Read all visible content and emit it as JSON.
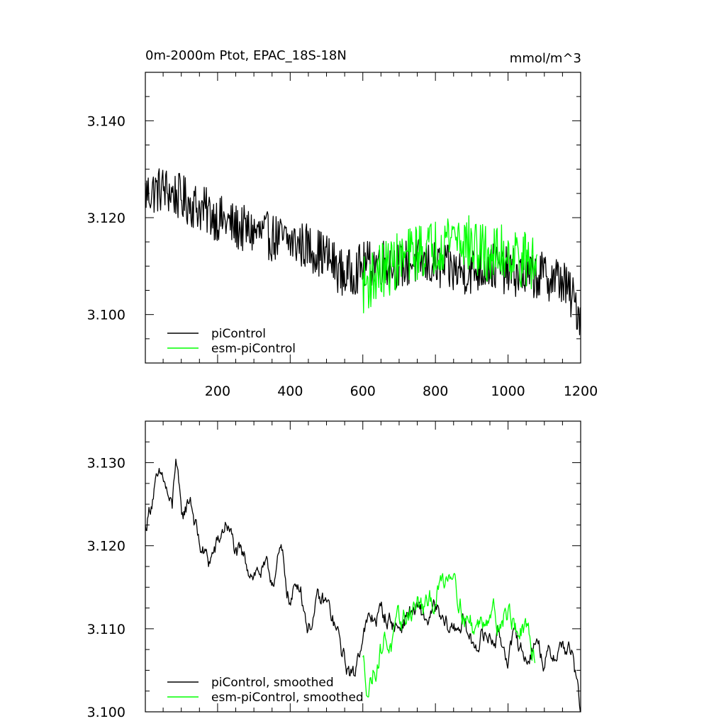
{
  "chart_data": [
    {
      "type": "line",
      "title": "0m-2000m Ptot, EPAC_18S-18N",
      "units": "mmol/m^3",
      "xlim": [
        1,
        1200
      ],
      "ylim": [
        3.09,
        3.15
      ],
      "xticks": [
        200,
        400,
        600,
        800,
        1000,
        1200
      ],
      "xtick_labels": [
        "200",
        "400",
        "600",
        "800",
        "1000",
        "1200"
      ],
      "yticks": [
        3.1,
        3.12,
        3.14
      ],
      "ytick_labels": [
        "3.100",
        "3.120",
        "3.140"
      ],
      "legend_position": "bottom-left",
      "series": [
        {
          "name": "piControl",
          "color": "#000000",
          "x": [
            1,
            50,
            100,
            150,
            200,
            250,
            300,
            350,
            400,
            450,
            500,
            550,
            600,
            650,
            700,
            750,
            800,
            850,
            900,
            950,
            1000,
            1050,
            1100,
            1150,
            1200
          ],
          "values": [
            3.125,
            3.126,
            3.124,
            3.122,
            3.12,
            3.118,
            3.117,
            3.116,
            3.115,
            3.114,
            3.112,
            3.108,
            3.11,
            3.111,
            3.11,
            3.111,
            3.11,
            3.109,
            3.109,
            3.11,
            3.109,
            3.108,
            3.108,
            3.107,
            3.1
          ],
          "noise": 0.005
        },
        {
          "name": "esm-piControl",
          "color": "#00ff00",
          "x": [
            600,
            650,
            700,
            750,
            800,
            850,
            900,
            950,
            1000,
            1050,
            1080
          ],
          "values": [
            3.106,
            3.109,
            3.111,
            3.113,
            3.114,
            3.117,
            3.114,
            3.112,
            3.113,
            3.111,
            3.11
          ],
          "noise": 0.006
        }
      ]
    },
    {
      "type": "line",
      "title": "",
      "units": "",
      "xlim": [
        1,
        1200
      ],
      "ylim": [
        3.1,
        3.135
      ],
      "xticks": [
        200,
        400,
        600,
        800,
        1000,
        1200
      ],
      "xtick_labels": [],
      "yticks": [
        3.1,
        3.11,
        3.12,
        3.13
      ],
      "ytick_labels": [
        "3.100",
        "3.110",
        "3.120",
        "3.130"
      ],
      "legend_position": "bottom-left",
      "series": [
        {
          "name": "piControl, smoothed",
          "color": "#000000",
          "x": [
            1,
            25,
            50,
            75,
            85,
            100,
            125,
            150,
            175,
            200,
            225,
            250,
            275,
            300,
            325,
            350,
            375,
            400,
            425,
            450,
            475,
            500,
            525,
            550,
            575,
            600,
            625,
            650,
            675,
            700,
            725,
            750,
            775,
            800,
            825,
            850,
            875,
            900,
            925,
            950,
            975,
            1000,
            1025,
            1050,
            1075,
            1100,
            1125,
            1150,
            1175,
            1200
          ],
          "values": [
            3.122,
            3.127,
            3.128,
            3.124,
            3.131,
            3.123,
            3.126,
            3.12,
            3.118,
            3.12,
            3.123,
            3.119,
            3.118,
            3.117,
            3.117,
            3.116,
            3.119,
            3.113,
            3.116,
            3.11,
            3.113,
            3.113,
            3.11,
            3.106,
            3.104,
            3.11,
            3.111,
            3.112,
            3.111,
            3.11,
            3.112,
            3.112,
            3.111,
            3.112,
            3.11,
            3.11,
            3.111,
            3.108,
            3.109,
            3.109,
            3.109,
            3.107,
            3.109,
            3.106,
            3.109,
            3.106,
            3.107,
            3.108,
            3.107,
            3.1
          ],
          "noise": 0.0012
        },
        {
          "name": "esm-piControl, smoothed",
          "color": "#00ff00",
          "x": [
            600,
            615,
            630,
            645,
            660,
            680,
            700,
            725,
            750,
            775,
            800,
            825,
            850,
            870,
            890,
            910,
            930,
            950,
            975,
            1000,
            1025,
            1050,
            1075
          ],
          "values": [
            3.106,
            3.103,
            3.105,
            3.107,
            3.109,
            3.108,
            3.11,
            3.112,
            3.113,
            3.112,
            3.114,
            3.116,
            3.118,
            3.113,
            3.111,
            3.11,
            3.111,
            3.113,
            3.111,
            3.112,
            3.11,
            3.109,
            3.107
          ],
          "noise": 0.0015
        }
      ]
    }
  ]
}
